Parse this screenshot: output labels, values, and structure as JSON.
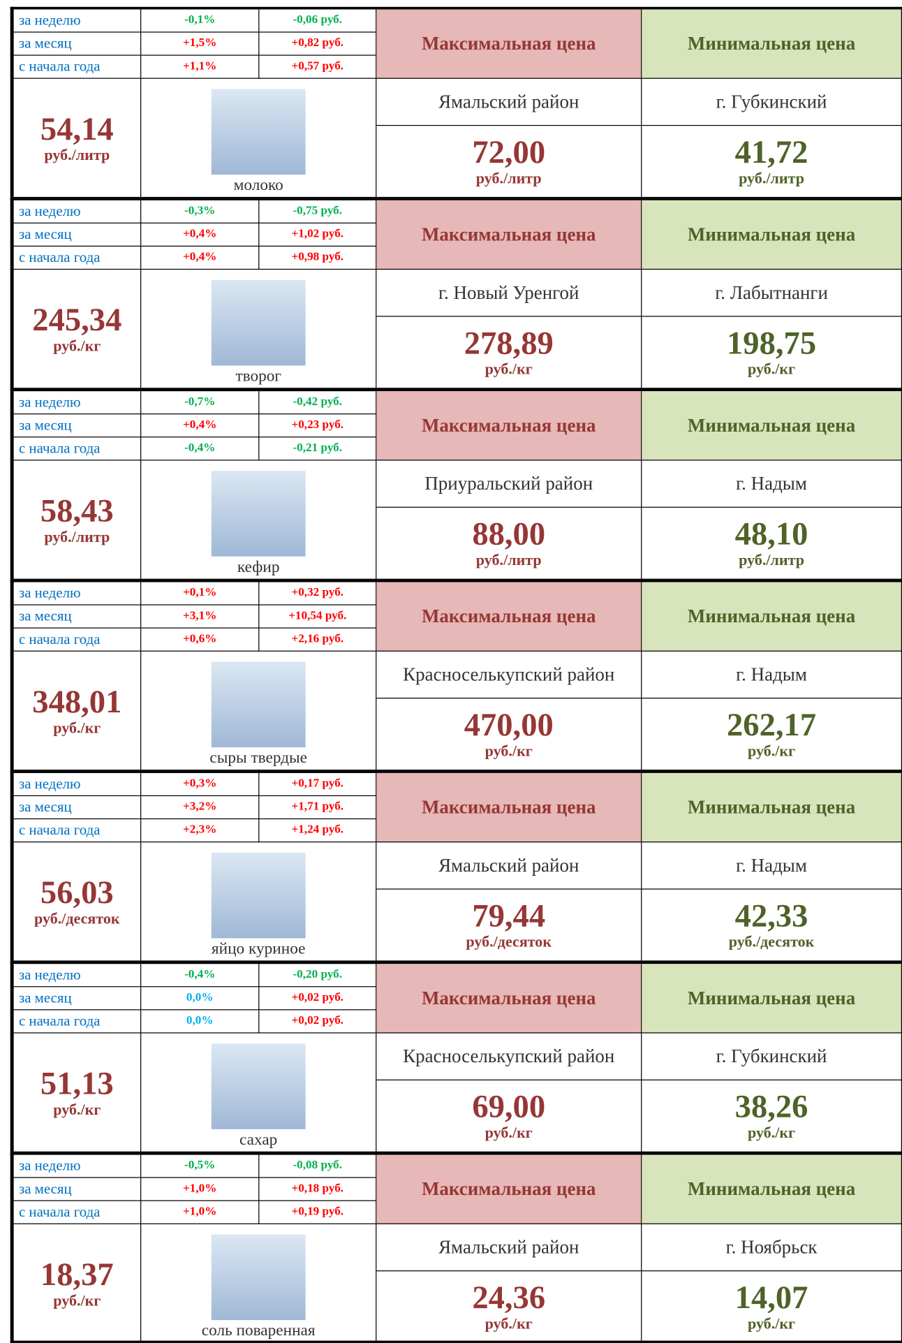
{
  "products": [
    {
      "changes": [
        {
          "period": "за неделю",
          "pct": "-0,1%",
          "rub": "-0,06 руб."
        },
        {
          "period": "за месяц",
          "pct": "+1,5%",
          "rub": "+0,82 руб."
        },
        {
          "period": "с начала года",
          "pct": "+1,1%",
          "rub": "+0,57 руб."
        }
      ],
      "price": "54,14",
      "unit": "руб./литр",
      "name": "молоко",
      "max_header": "Максимальная цена",
      "min_header": "Минимальная цена",
      "max_region": "Ямальский район",
      "min_region": "г. Губкинский",
      "max_price": "72,00",
      "max_unit": "руб./литр",
      "min_price": "41,72",
      "min_unit": "руб./литр"
    },
    {
      "changes": [
        {
          "period": "за неделю",
          "pct": "-0,3%",
          "rub": "-0,75 руб."
        },
        {
          "period": "за месяц",
          "pct": "+0,4%",
          "rub": "+1,02 руб."
        },
        {
          "period": "с начала года",
          "pct": "+0,4%",
          "rub": "+0,98 руб."
        }
      ],
      "price": "245,34",
      "unit": "руб./кг",
      "name": "творог",
      "max_header": "Максимальная цена",
      "min_header": "Минимальная цена",
      "max_region": "г. Новый Уренгой",
      "min_region": "г. Лабытнанги",
      "max_price": "278,89",
      "max_unit": "руб./кг",
      "min_price": "198,75",
      "min_unit": "руб./кг"
    },
    {
      "changes": [
        {
          "period": "за неделю",
          "pct": "-0,7%",
          "rub": "-0,42 руб."
        },
        {
          "period": "за месяц",
          "pct": "+0,4%",
          "rub": "+0,23 руб."
        },
        {
          "period": "с начала года",
          "pct": "-0,4%",
          "rub": "-0,21 руб."
        }
      ],
      "price": "58,43",
      "unit": "руб./литр",
      "name": "кефир",
      "max_header": "Максимальная цена",
      "min_header": "Минимальная цена",
      "max_region": "Приуральский район",
      "min_region": "г. Надым",
      "max_price": "88,00",
      "max_unit": "руб./литр",
      "min_price": "48,10",
      "min_unit": "руб./литр"
    },
    {
      "changes": [
        {
          "period": "за неделю",
          "pct": "+0,1%",
          "rub": "+0,32 руб."
        },
        {
          "period": "за месяц",
          "pct": "+3,1%",
          "rub": "+10,54 руб."
        },
        {
          "period": "с начала года",
          "pct": "+0,6%",
          "rub": "+2,16 руб."
        }
      ],
      "price": "348,01",
      "unit": "руб./кг",
      "name": "сыры твердые",
      "max_header": "Максимальная цена",
      "min_header": "Минимальная цена",
      "max_region": "Красноселькупский район",
      "min_region": "г. Надым",
      "max_price": "470,00",
      "max_unit": "руб./кг",
      "min_price": "262,17",
      "min_unit": "руб./кг"
    },
    {
      "changes": [
        {
          "period": "за неделю",
          "pct": "+0,3%",
          "rub": "+0,17 руб."
        },
        {
          "period": "за месяц",
          "pct": "+3,2%",
          "rub": "+1,71 руб."
        },
        {
          "period": "с начала года",
          "pct": "+2,3%",
          "rub": "+1,24 руб."
        }
      ],
      "price": "56,03",
      "unit": "руб./десяток",
      "name": "яйцо куриное",
      "max_header": "Максимальная цена",
      "min_header": "Минимальная цена",
      "max_region": "Ямальский район",
      "min_region": "г. Надым",
      "max_price": "79,44",
      "max_unit": "руб./десяток",
      "min_price": "42,33",
      "min_unit": "руб./десяток"
    },
    {
      "changes": [
        {
          "period": "за неделю",
          "pct": "-0,4%",
          "rub": "-0,20 руб."
        },
        {
          "period": "за месяц",
          "pct": "0,0%",
          "rub": "+0,02 руб."
        },
        {
          "period": "с начала года",
          "pct": "0,0%",
          "rub": "+0,02 руб."
        }
      ],
      "price": "51,13",
      "unit": "руб./кг",
      "name": "сахар",
      "max_header": "Максимальная цена",
      "min_header": "Минимальная цена",
      "max_region": "Красноселькупский район",
      "min_region": "г. Губкинский",
      "max_price": "69,00",
      "max_unit": "руб./кг",
      "min_price": "38,26",
      "min_unit": "руб./кг"
    },
    {
      "changes": [
        {
          "period": "за неделю",
          "pct": "-0,5%",
          "rub": "-0,08 руб."
        },
        {
          "period": "за месяц",
          "pct": "+1,0%",
          "rub": "+0,18 руб."
        },
        {
          "period": "с начала года",
          "pct": "+1,0%",
          "rub": "+0,19 руб."
        }
      ],
      "price": "18,37",
      "unit": "руб./кг",
      "name": "соль поваренная",
      "max_header": "Максимальная цена",
      "min_header": "Минимальная цена",
      "max_region": "Ямальский район",
      "min_region": "г. Ноябрьск",
      "max_price": "24,36",
      "max_unit": "руб./кг",
      "min_price": "14,07",
      "min_unit": "руб./кг"
    }
  ]
}
